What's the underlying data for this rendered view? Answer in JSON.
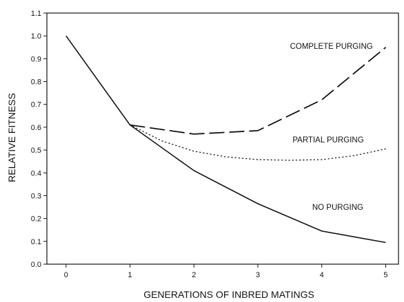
{
  "chart_data": {
    "type": "line",
    "xlabel": "GENERATIONS OF INBRED MATINGS",
    "ylabel": "RELATIVE FITNESS",
    "xlim": [
      -0.3,
      5.2
    ],
    "ylim": [
      0.0,
      1.1
    ],
    "x_ticks": [
      0,
      1,
      2,
      3,
      4,
      5
    ],
    "y_ticks": [
      "0.0",
      "0.1",
      "0.2",
      "0.3",
      "0.4",
      "0.5",
      "0.6",
      "0.7",
      "0.8",
      "0.9",
      "1.0",
      "1.1"
    ],
    "grid": false,
    "series": [
      {
        "name": "NO PURGING",
        "style": "solid",
        "x": [
          0,
          1,
          2,
          3,
          4,
          5
        ],
        "y": [
          1.0,
          0.61,
          0.41,
          0.265,
          0.145,
          0.095
        ]
      },
      {
        "name": "PARTIAL PURGING",
        "style": "dotted",
        "x": [
          1,
          1.5,
          2,
          2.5,
          3,
          3.5,
          4,
          4.5,
          5
        ],
        "y": [
          0.61,
          0.54,
          0.495,
          0.47,
          0.458,
          0.455,
          0.458,
          0.475,
          0.505
        ]
      },
      {
        "name": "COMPLETE PURGING",
        "style": "dashed",
        "x": [
          1,
          2,
          3,
          4,
          5
        ],
        "y": [
          0.61,
          0.57,
          0.585,
          0.72,
          0.95
        ]
      }
    ],
    "annotations": [
      {
        "text": "COMPLETE PURGING",
        "x": 4.15,
        "y": 0.955
      },
      {
        "text": "PARTIAL PURGING",
        "x": 4.1,
        "y": 0.545
      },
      {
        "text": "NO PURGING",
        "x": 4.25,
        "y": 0.25
      }
    ]
  }
}
